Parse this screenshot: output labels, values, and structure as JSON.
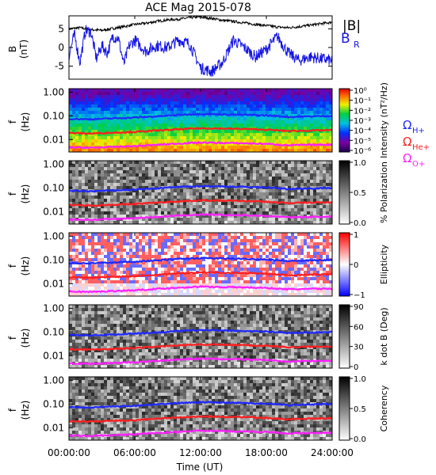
{
  "title": "ACE Mag 2015-078",
  "colors": {
    "btotal": "#000000",
    "br": "#1414e6",
    "h": "#1e28ff",
    "he": "#ff1e1e",
    "o": "#ff1eff",
    "panel_gray_bg": "#6e6e6e"
  },
  "xaxis": {
    "label": "Time (UT)",
    "ticks": [
      "00:00:00",
      "06:00:00",
      "12:00:00",
      "18:00:00",
      "24:00:00"
    ]
  },
  "legend": {
    "btotal": "|B|",
    "br": "B",
    "br_sub": "R",
    "h": "Ω",
    "h_sub": "H+",
    "he": "Ω",
    "he_sub": "He+",
    "o": "Ω",
    "o_sub": "O+"
  },
  "freq_ylabel": [
    "f",
    "(Hz)"
  ],
  "freq_ticks": [
    "1.00",
    "0.10",
    "0.01"
  ],
  "chart_data": [
    {
      "type": "line",
      "panel": "B",
      "ylabel": [
        "B",
        "(nT)"
      ],
      "ylim": [
        -8.5,
        8.5
      ],
      "yticks": [
        "5",
        "0",
        "-5"
      ],
      "xlim_hours": [
        0,
        24
      ],
      "series": [
        {
          "name": "|B|",
          "color": "#000000",
          "x": [
            0,
            1,
            2,
            3,
            4,
            5,
            6,
            7,
            8,
            9,
            10,
            11,
            12,
            13,
            14,
            15,
            16,
            17,
            18,
            19,
            20,
            21,
            22,
            23,
            24
          ],
          "y": [
            5.0,
            5.3,
            4.8,
            4.6,
            5.1,
            5.6,
            6.2,
            6.5,
            7.0,
            7.4,
            7.6,
            8.0,
            8.2,
            7.8,
            7.3,
            7.0,
            6.6,
            6.2,
            5.9,
            5.5,
            5.3,
            5.6,
            6.0,
            6.4,
            6.8
          ]
        },
        {
          "name": "B_R",
          "color": "#1414e6",
          "x": [
            0,
            0.5,
            1,
            1.5,
            2,
            2.5,
            3,
            3.5,
            4,
            4.5,
            5,
            5.5,
            6,
            7,
            8,
            9,
            10,
            11,
            12,
            13,
            14,
            15,
            16,
            17,
            18,
            19,
            20,
            21,
            22,
            23,
            24
          ],
          "y": [
            -2.0,
            3.5,
            -4.0,
            4.5,
            4.2,
            -3.0,
            0.5,
            -1.5,
            3.0,
            2.5,
            -4.5,
            0.5,
            2.0,
            -1.0,
            0.5,
            0.0,
            2.0,
            1.0,
            -5.5,
            -6.5,
            -4.0,
            2.0,
            0.0,
            -2.5,
            -0.5,
            3.0,
            -1.5,
            -3.5,
            -2.5,
            -3.0,
            -3.5
          ]
        }
      ]
    },
    {
      "type": "heatmap",
      "panel": "Intensity",
      "cbar_label": "Intensity (nT²/Hz)",
      "cbar_ticks": [
        "10⁰",
        "10⁻¹",
        "10⁻²",
        "10⁻³",
        "10⁻⁴",
        "10⁻⁵",
        "10⁻⁶"
      ]
    },
    {
      "type": "heatmap",
      "panel": "Polarization",
      "cbar_label": "% Polarization",
      "cbar_ticks": [
        "1.0",
        "0.5",
        "0.0"
      ]
    },
    {
      "type": "heatmap",
      "panel": "Ellipticity",
      "cbar_label": "Ellipticity",
      "cbar_ticks": [
        "1",
        "0",
        "−1"
      ]
    },
    {
      "type": "heatmap",
      "panel": "k dot B",
      "cbar_label": "k dot B (Deg)",
      "cbar_ticks": [
        "90",
        "60",
        "30",
        "0"
      ]
    },
    {
      "type": "heatmap",
      "panel": "Coherency",
      "cbar_label": "Coherency",
      "cbar_ticks": [
        "1.0",
        "0.5",
        "0.0"
      ]
    },
    {
      "type": "line",
      "panel": "gyrofrequency overlays (all spectrogram panels)",
      "ylim_hz_log": [
        0.003,
        1.4
      ],
      "series": [
        {
          "name": "Ω H+",
          "color": "#1e28ff",
          "x": [
            0,
            2,
            4,
            6,
            8,
            10,
            12,
            14,
            16,
            18,
            20,
            22,
            24
          ],
          "y": [
            0.075,
            0.072,
            0.078,
            0.085,
            0.095,
            0.11,
            0.12,
            0.115,
            0.11,
            0.105,
            0.09,
            0.095,
            0.1
          ]
        },
        {
          "name": "Ω He+",
          "color": "#ff1e1e",
          "x": [
            0,
            2,
            4,
            6,
            8,
            10,
            12,
            14,
            16,
            18,
            20,
            22,
            24
          ],
          "y": [
            0.019,
            0.018,
            0.0195,
            0.021,
            0.024,
            0.027,
            0.03,
            0.029,
            0.028,
            0.026,
            0.023,
            0.024,
            0.025
          ]
        },
        {
          "name": "Ω O+",
          "color": "#ff1eff",
          "x": [
            0,
            2,
            4,
            6,
            8,
            10,
            12,
            14,
            16,
            18,
            20,
            22,
            24
          ],
          "y": [
            0.0047,
            0.0045,
            0.0049,
            0.0053,
            0.006,
            0.0068,
            0.0075,
            0.0072,
            0.007,
            0.0066,
            0.0058,
            0.006,
            0.0062
          ]
        }
      ]
    }
  ]
}
